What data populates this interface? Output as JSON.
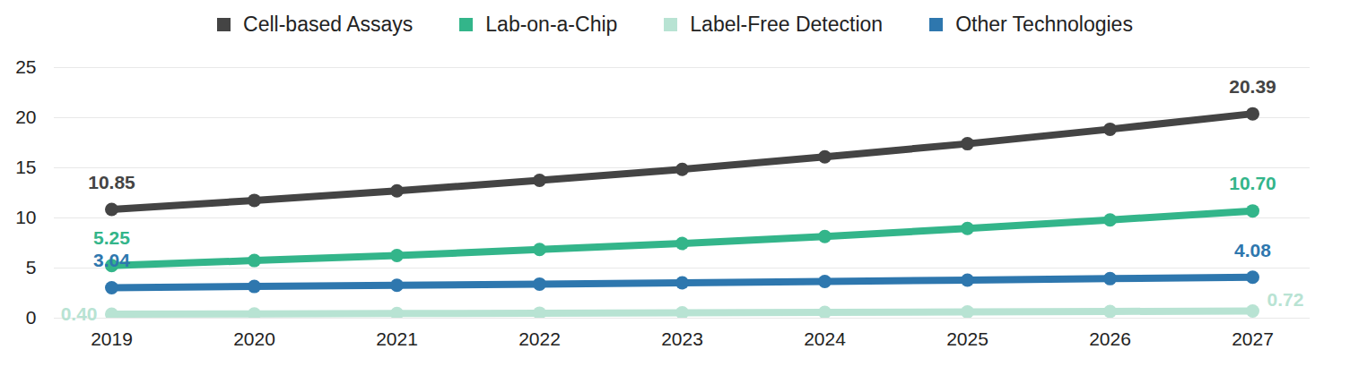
{
  "chart_data": {
    "type": "line",
    "categories": [
      "2019",
      "2020",
      "2021",
      "2022",
      "2023",
      "2024",
      "2025",
      "2026",
      "2027"
    ],
    "series": [
      {
        "name": "Cell-based Assays",
        "color": "#444444",
        "values": [
          10.85,
          11.75,
          12.7,
          13.75,
          14.85,
          16.1,
          17.4,
          18.85,
          20.39
        ],
        "value_labels": [
          "10.85",
          null,
          null,
          null,
          null,
          null,
          null,
          null,
          "20.39"
        ]
      },
      {
        "name": "Lab-on-a-Chip",
        "color": "#33b58a",
        "values": [
          5.25,
          5.75,
          6.25,
          6.85,
          7.45,
          8.15,
          8.95,
          9.8,
          10.7
        ],
        "value_labels": [
          "5.25",
          null,
          null,
          null,
          null,
          null,
          null,
          null,
          "10.70"
        ]
      },
      {
        "name": "Label-Free Detection",
        "color": "#b8e3d3",
        "values": [
          0.4,
          0.43,
          0.46,
          0.5,
          0.54,
          0.58,
          0.62,
          0.67,
          0.72
        ],
        "value_labels": [
          "0.40",
          null,
          null,
          null,
          null,
          null,
          null,
          null,
          "0.72"
        ]
      },
      {
        "name": "Other Technologies",
        "color": "#2e77ae",
        "values": [
          3.04,
          3.16,
          3.28,
          3.4,
          3.53,
          3.66,
          3.8,
          3.94,
          4.08
        ],
        "value_labels": [
          "3.04",
          null,
          null,
          null,
          null,
          null,
          null,
          null,
          "4.08"
        ]
      }
    ],
    "ylim": [
      0,
      25
    ],
    "yticks": [
      0,
      5,
      10,
      15,
      20,
      25
    ],
    "grid": true,
    "legend": "top",
    "data_labels": true,
    "marker": "circle"
  }
}
